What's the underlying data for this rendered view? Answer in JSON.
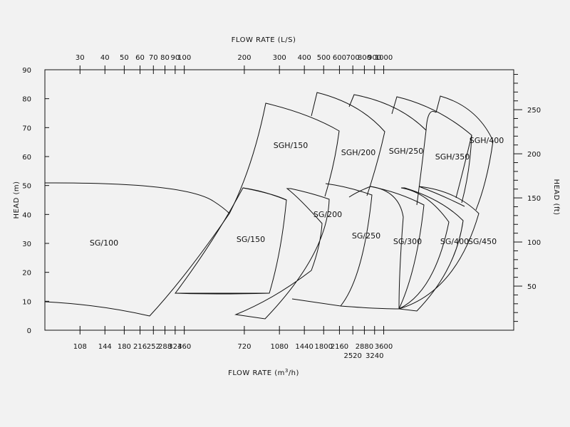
{
  "chart_data": {
    "type": "area",
    "title": "",
    "top_axis": {
      "label": "FLOW RATE (L/S)",
      "ticks": [
        "30",
        "40",
        "50",
        "60",
        "70",
        "80",
        "90",
        "100",
        "200",
        "300",
        "400",
        "500",
        "600",
        "700",
        "800",
        "900",
        "1000"
      ]
    },
    "bottom_axis": {
      "label": "FLOW RATE (m",
      "label_sup": "3",
      "label_tail": "/h)",
      "ticks": [
        {
          "value": "108",
          "row": 0
        },
        {
          "value": "144",
          "row": 0
        },
        {
          "value": "180",
          "row": 0
        },
        {
          "value": "216",
          "row": 0
        },
        {
          "value": "252",
          "row": 0
        },
        {
          "value": "288",
          "row": 0
        },
        {
          "value": "324",
          "row": 0
        },
        {
          "value": "360",
          "row": 0
        },
        {
          "value": "720",
          "row": 0
        },
        {
          "value": "1080",
          "row": 0
        },
        {
          "value": "1440",
          "row": 0
        },
        {
          "value": "1800",
          "row": 0
        },
        {
          "value": "2160",
          "row": 0
        },
        {
          "value": "2520",
          "row": 1
        },
        {
          "value": "2880",
          "row": 0
        },
        {
          "value": "3240",
          "row": 1
        },
        {
          "value": "3600",
          "row": 0
        }
      ]
    },
    "left_axis": {
      "label": "HEAD (m)",
      "ticks": [
        "0",
        "10",
        "20",
        "30",
        "40",
        "50",
        "60",
        "70",
        "80",
        "90"
      ],
      "range": [
        0,
        90
      ]
    },
    "right_axis": {
      "label": "HEAD (ft)",
      "ticks": [
        "50",
        "100",
        "150",
        "200",
        "250"
      ]
    },
    "regions": [
      {
        "name": "SG/100",
        "flow_m3h": [
          85,
          430
        ],
        "head_m": [
          5,
          51
        ]
      },
      {
        "name": "SG/150",
        "flow_m3h": [
          230,
          720
        ],
        "head_m": [
          4,
          49
        ]
      },
      {
        "name": "SG/200",
        "flow_m3h": [
          550,
          850
        ],
        "head_m": [
          8,
          49
        ]
      },
      {
        "name": "SG/250",
        "flow_m3h": [
          1000,
          1800
        ],
        "head_m": [
          8,
          50
        ]
      },
      {
        "name": "SG/300",
        "flow_m3h": [
          1500,
          2500
        ],
        "head_m": [
          7,
          49
        ]
      },
      {
        "name": "SG/400",
        "flow_m3h": [
          2100,
          3200
        ],
        "head_m": [
          7,
          49
        ]
      },
      {
        "name": "SG/450",
        "flow_m3h": [
          2300,
          3600
        ],
        "head_m": [
          7,
          49
        ]
      },
      {
        "name": "SGH/150",
        "flow_m3h": [
          450,
          850
        ],
        "head_m": [
          40,
          79
        ]
      },
      {
        "name": "SGH/200",
        "flow_m3h": [
          750,
          1250
        ],
        "head_m": [
          46,
          82
        ]
      },
      {
        "name": "SGH/250",
        "flow_m3h": [
          1300,
          2200
        ],
        "head_m": [
          46,
          81
        ]
      },
      {
        "name": "SGH/350",
        "flow_m3h": [
          1800,
          2900
        ],
        "head_m": [
          45,
          81
        ]
      },
      {
        "name": "SGH/400",
        "flow_m3h": [
          2300,
          3800
        ],
        "head_m": [
          42,
          81
        ]
      }
    ]
  }
}
